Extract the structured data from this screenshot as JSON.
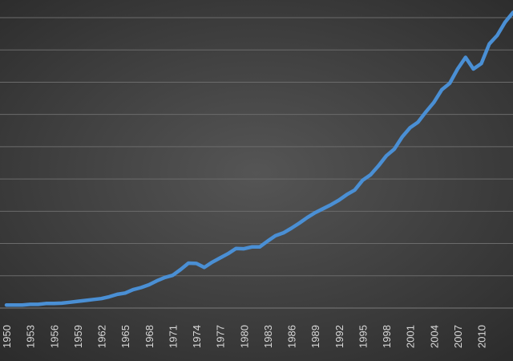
{
  "chart_data": {
    "type": "line",
    "title": "",
    "xlabel": "",
    "ylabel": "",
    "grid": true,
    "legend": "none",
    "line_color": "#4a8fd4",
    "x_tick_labels": [
      "1950",
      "1953",
      "1956",
      "1959",
      "1962",
      "1965",
      "1968",
      "1971",
      "1974",
      "1977",
      "1980",
      "1983",
      "1986",
      "1989",
      "1992",
      "1995",
      "1998",
      "2001",
      "2004",
      "2007",
      "2010"
    ],
    "ylim": [
      0,
      9.5
    ],
    "series": [
      {
        "values": [
          [
            1950,
            0.1
          ],
          [
            1951,
            0.1
          ],
          [
            1952,
            0.1
          ],
          [
            1953,
            0.12
          ],
          [
            1954,
            0.12
          ],
          [
            1955,
            0.15
          ],
          [
            1956,
            0.15
          ],
          [
            1957,
            0.16
          ],
          [
            1958,
            0.19
          ],
          [
            1959,
            0.22
          ],
          [
            1960,
            0.25
          ],
          [
            1961,
            0.28
          ],
          [
            1962,
            0.31
          ],
          [
            1963,
            0.37
          ],
          [
            1964,
            0.45
          ],
          [
            1965,
            0.49
          ],
          [
            1966,
            0.6
          ],
          [
            1967,
            0.67
          ],
          [
            1968,
            0.76
          ],
          [
            1969,
            0.89
          ],
          [
            1970,
            1.0
          ],
          [
            1971,
            1.07
          ],
          [
            1972,
            1.26
          ],
          [
            1973,
            1.47
          ],
          [
            1974,
            1.46
          ],
          [
            1975,
            1.33
          ],
          [
            1976,
            1.5
          ],
          [
            1977,
            1.64
          ],
          [
            1978,
            1.78
          ],
          [
            1979,
            1.95
          ],
          [
            1980,
            1.94
          ],
          [
            1981,
            2.0
          ],
          [
            1982,
            2.0
          ],
          [
            1983,
            2.19
          ],
          [
            1984,
            2.37
          ],
          [
            1985,
            2.46
          ],
          [
            1986,
            2.61
          ],
          [
            1987,
            2.78
          ],
          [
            1988,
            2.96
          ],
          [
            1989,
            3.12
          ],
          [
            1990,
            3.25
          ],
          [
            1991,
            3.38
          ],
          [
            1992,
            3.53
          ],
          [
            1993,
            3.71
          ],
          [
            1994,
            3.86
          ],
          [
            1995,
            4.18
          ],
          [
            1996,
            4.36
          ],
          [
            1997,
            4.65
          ],
          [
            1998,
            4.98
          ],
          [
            1999,
            5.2
          ],
          [
            2000,
            5.6
          ],
          [
            2001,
            5.9
          ],
          [
            2002,
            6.08
          ],
          [
            2003,
            6.42
          ],
          [
            2004,
            6.73
          ],
          [
            2005,
            7.14
          ],
          [
            2006,
            7.35
          ],
          [
            2007,
            7.82
          ],
          [
            2008,
            8.2
          ],
          [
            2009,
            7.82
          ],
          [
            2010,
            8.0
          ],
          [
            2011,
            8.64
          ],
          [
            2012,
            8.92
          ],
          [
            2013,
            9.35
          ],
          [
            2014,
            9.67
          ]
        ]
      }
    ]
  }
}
